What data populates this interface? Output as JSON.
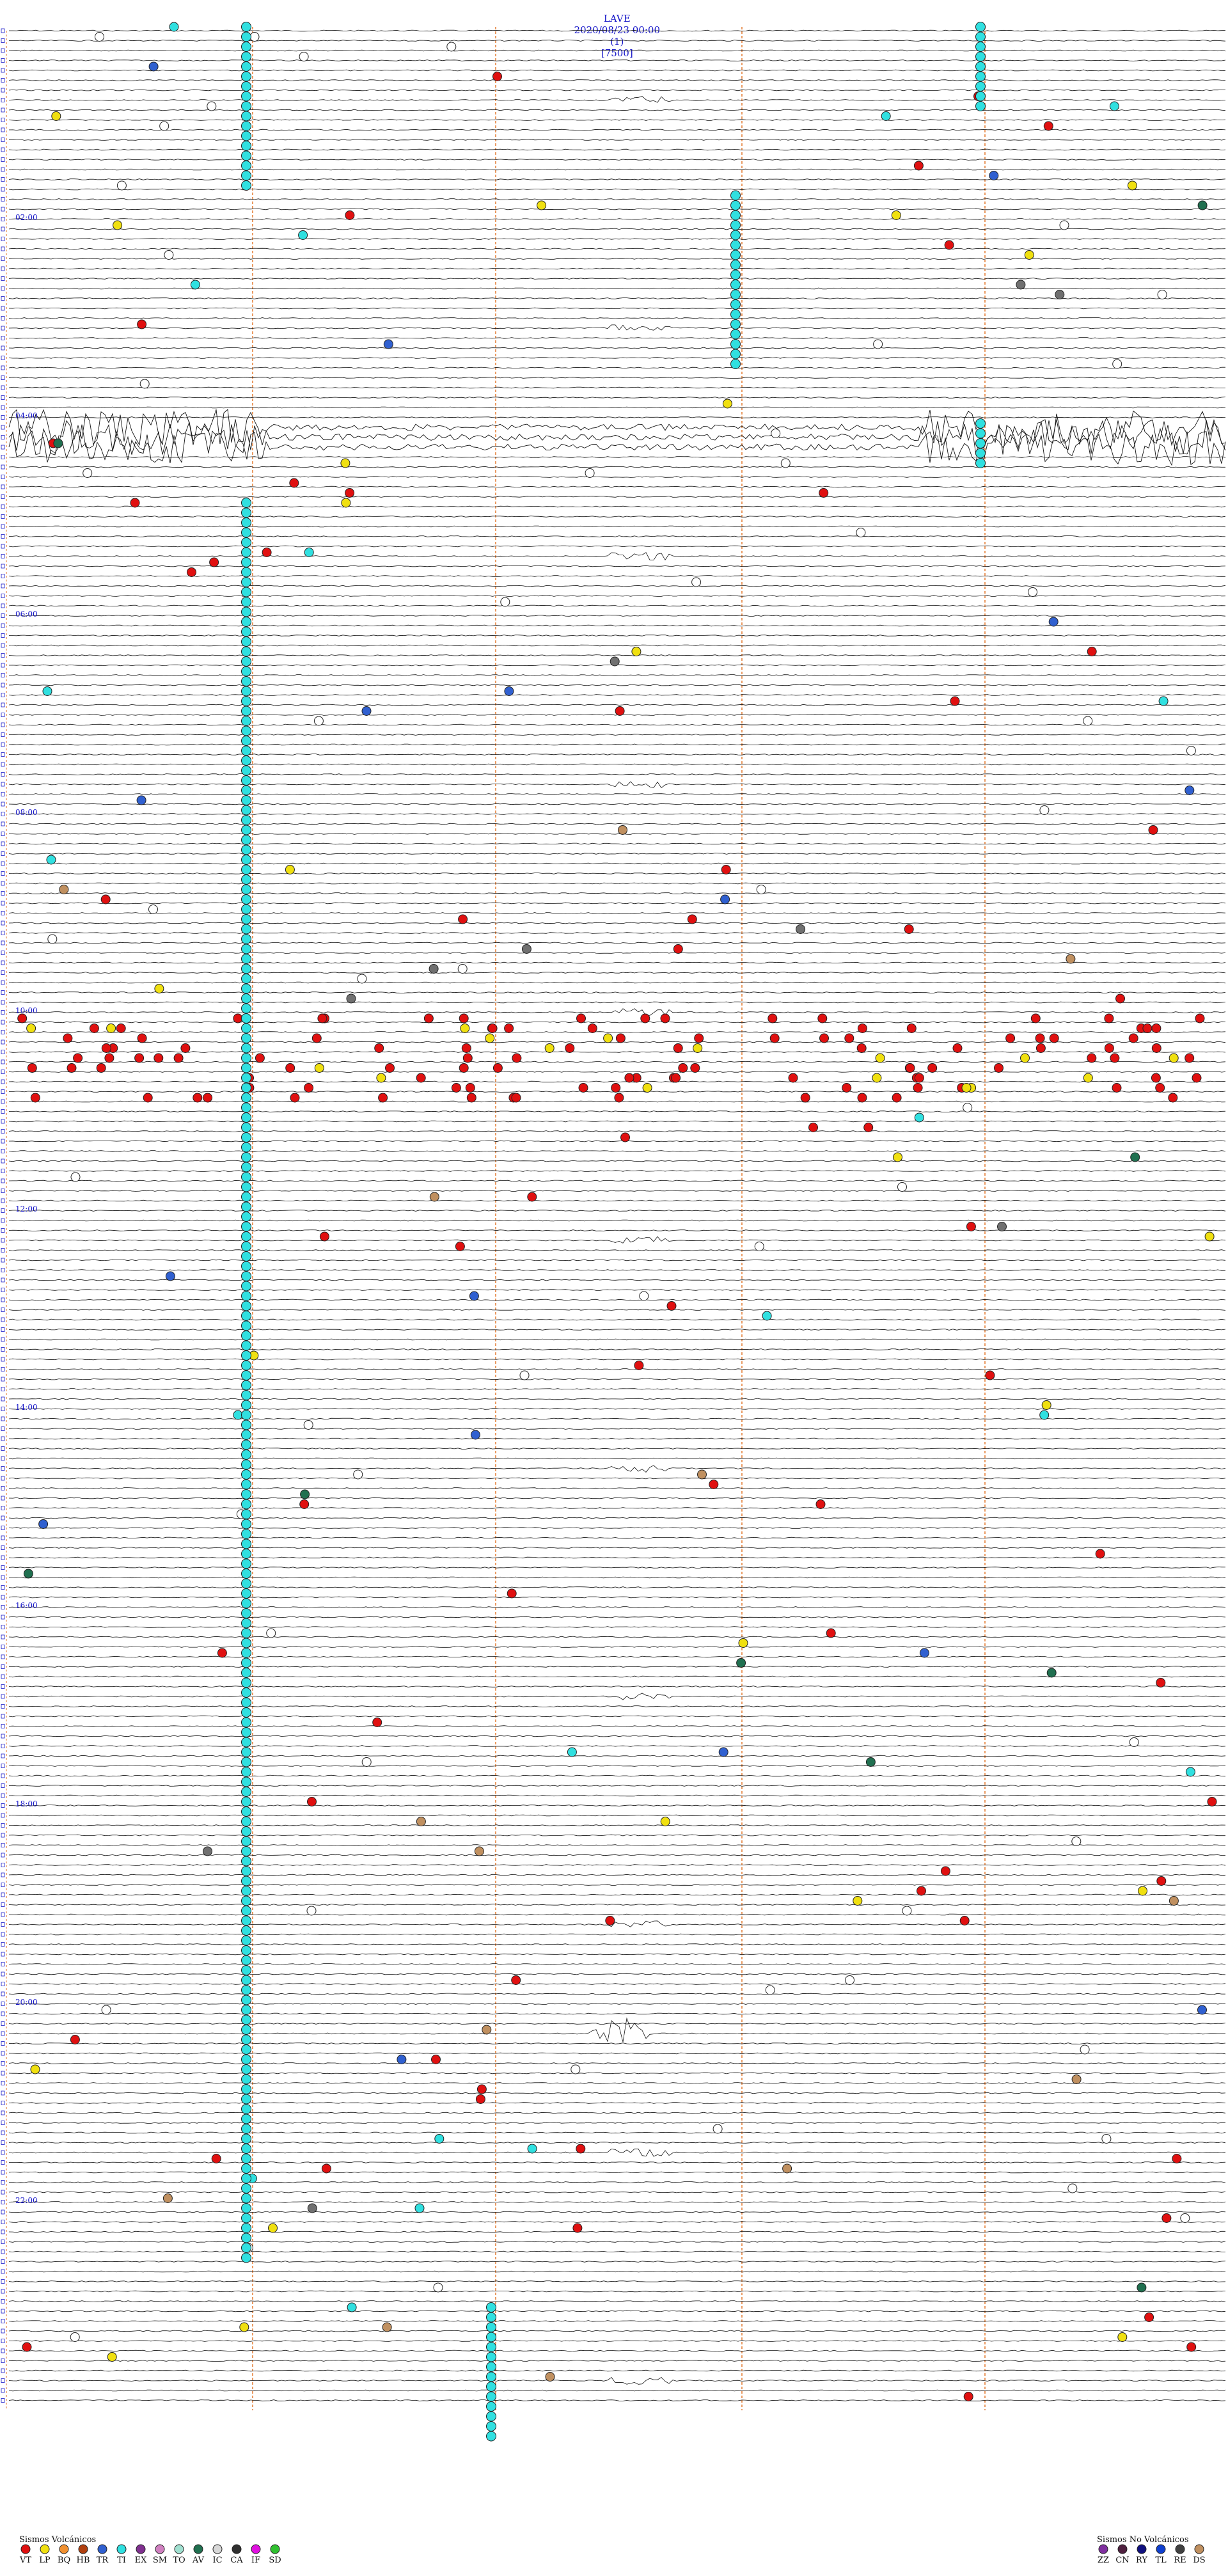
{
  "header": {
    "station": "LAVE",
    "datetime": "2020/08/23 00:00",
    "channel": "(1)",
    "gain": "[7500]"
  },
  "chart_data": {
    "type": "scatter",
    "title": "LAVE 2020/08/23 00:00 (1) [7500]",
    "hour_labels": [
      "02:00",
      "04:00",
      "06:00",
      "08:00",
      "10:00",
      "12:00",
      "14:00",
      "16:00",
      "18:00",
      "20:00",
      "22:00"
    ],
    "legend_volcanic": {
      "title": "Sismos Volcánicos",
      "items": [
        {
          "code": "VT",
          "color": "#e01010"
        },
        {
          "code": "LP",
          "color": "#f0e010"
        },
        {
          "code": "BQ",
          "color": "#f09030"
        },
        {
          "code": "HB",
          "color": "#b04010"
        },
        {
          "code": "TR",
          "color": "#3060d0"
        },
        {
          "code": "TI",
          "color": "#30e0e0"
        },
        {
          "code": "EX",
          "color": "#803090"
        },
        {
          "code": "SM",
          "color": "#d080c0"
        },
        {
          "code": "TO",
          "color": "#a0e0d0"
        },
        {
          "code": "AV",
          "color": "#207050"
        },
        {
          "code": "IC",
          "color": "#d8d8d8"
        },
        {
          "code": "CA",
          "color": "#303030"
        },
        {
          "code": "IF",
          "color": "#e010e0"
        },
        {
          "code": "SD",
          "color": "#30c030"
        }
      ]
    },
    "legend_nonvolcanic": {
      "title": "Sismos No Volcánicos",
      "items": [
        {
          "code": "ZZ",
          "color": "#8030a0"
        },
        {
          "code": "CN",
          "color": "#502040"
        },
        {
          "code": "RY",
          "color": "#101080"
        },
        {
          "code": "TL",
          "color": "#1040d0"
        },
        {
          "code": "RE",
          "color": "#404040"
        },
        {
          "code": "DS",
          "color": "#c09060"
        }
      ]
    },
    "colors": {
      "trace": "#111111",
      "hour_mark": "#1515c8",
      "vertical_ref": "#e07020",
      "event_outline": "#222222"
    }
  }
}
